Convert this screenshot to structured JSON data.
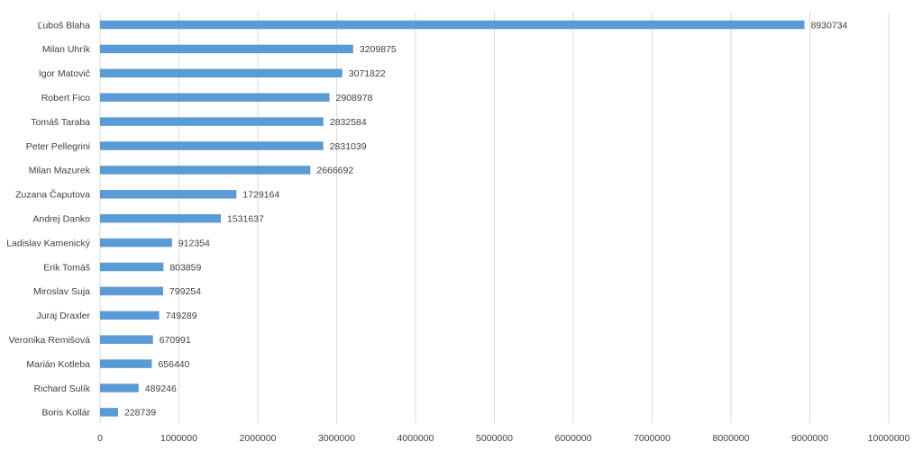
{
  "chart_data": {
    "type": "bar",
    "orientation": "horizontal",
    "title": "",
    "xlabel": "",
    "ylabel": "",
    "categories": [
      "Ľuboš Blaha",
      "Milan Uhrík",
      "Igor Matovič",
      "Robert Fico",
      "Tomáš Taraba",
      "Peter Pellegrini",
      "Milan Mazurek",
      "Zuzana Čaputova",
      "Andrej Danko",
      "Ladislav Kamenický",
      "Erik Tomáš",
      "Miroslav Suja",
      "Juraj Draxler",
      "Veronika Remišová",
      "Marián Kotleba",
      "Richard Sulík",
      "Boris Kollár"
    ],
    "values": [
      8930734,
      3209875,
      3071822,
      2908978,
      2832584,
      2831039,
      2666692,
      1729164,
      1531637,
      912354,
      803859,
      799254,
      749289,
      670991,
      656440,
      489246,
      228739
    ],
    "xlim": [
      0,
      10000000
    ],
    "xticks": [
      0,
      1000000,
      2000000,
      3000000,
      4000000,
      5000000,
      6000000,
      7000000,
      8000000,
      9000000,
      10000000
    ],
    "data_labels": true,
    "grid": "vertical",
    "legend": "none",
    "bar_color": "#5b9bd5"
  }
}
